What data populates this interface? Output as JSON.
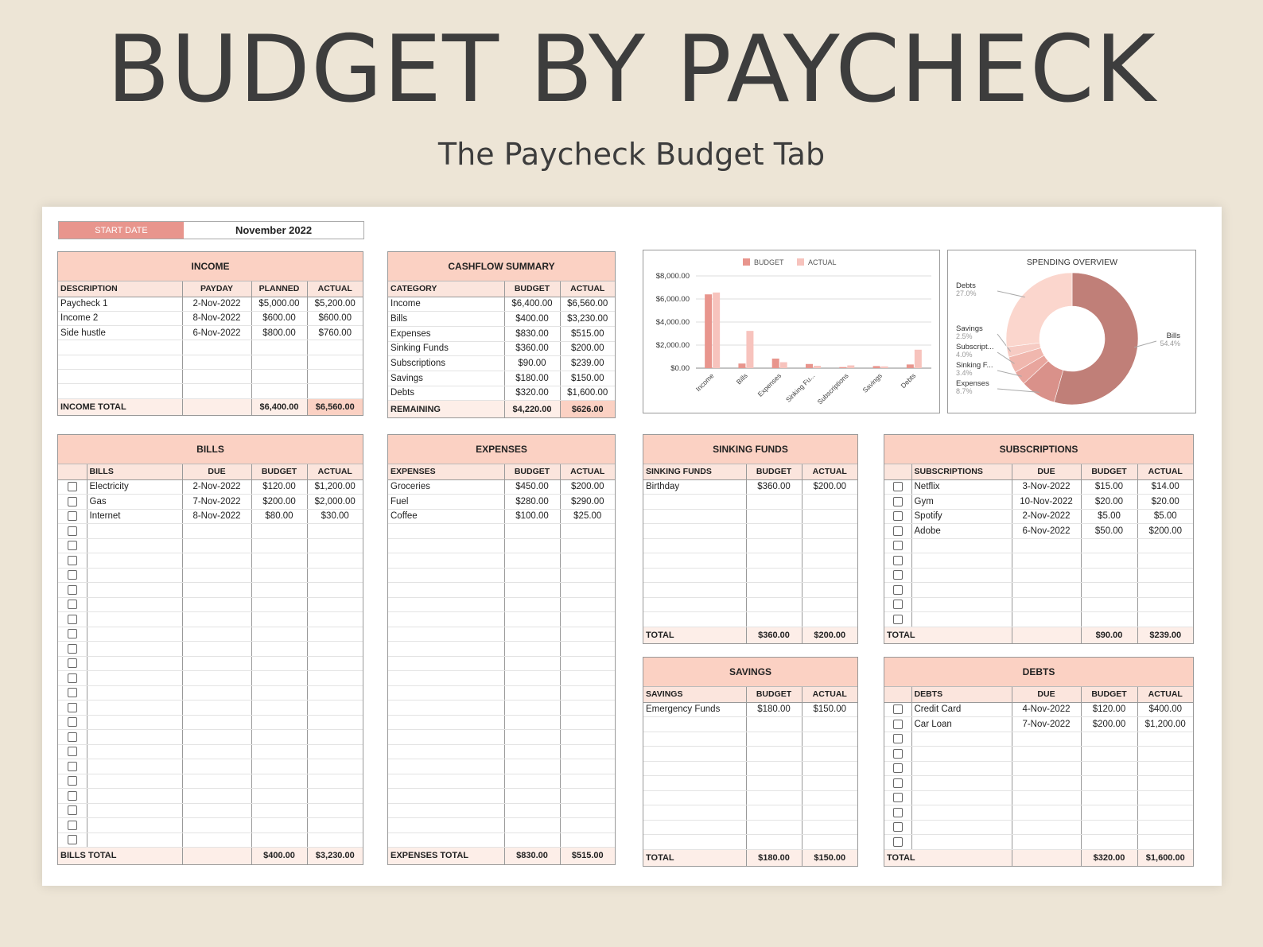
{
  "title": "BUDGET BY PAYCHECK",
  "subtitle": "The Paycheck Budget Tab",
  "start": {
    "label": "START DATE",
    "value": "November 2022"
  },
  "income": {
    "title": "INCOME",
    "headers": [
      "DESCRIPTION",
      "PAYDAY",
      "PLANNED",
      "ACTUAL"
    ],
    "rows": [
      [
        "Paycheck 1",
        "2-Nov-2022",
        "$5,000.00",
        "$5,200.00"
      ],
      [
        "Income 2",
        "8-Nov-2022",
        "$600.00",
        "$600.00"
      ],
      [
        "Side hustle",
        "6-Nov-2022",
        "$800.00",
        "$760.00"
      ]
    ],
    "blank_rows": 4,
    "total": [
      "INCOME TOTAL",
      "",
      "$6,400.00",
      "$6,560.00"
    ]
  },
  "cashflow": {
    "title": "CASHFLOW SUMMARY",
    "headers": [
      "CATEGORY",
      "BUDGET",
      "ACTUAL"
    ],
    "rows": [
      [
        "Income",
        "$6,400.00",
        "$6,560.00"
      ],
      [
        "Bills",
        "$400.00",
        "$3,230.00"
      ],
      [
        "Expenses",
        "$830.00",
        "$515.00"
      ],
      [
        "Sinking Funds",
        "$360.00",
        "$200.00"
      ],
      [
        "Subscriptions",
        "$90.00",
        "$239.00"
      ],
      [
        "Savings",
        "$180.00",
        "$150.00"
      ],
      [
        "Debts",
        "$320.00",
        "$1,600.00"
      ]
    ],
    "total": [
      "REMAINING",
      "$4,220.00",
      "$626.00"
    ]
  },
  "bills": {
    "title": "BILLS",
    "headers": [
      "",
      "BILLS",
      "DUE",
      "BUDGET",
      "ACTUAL"
    ],
    "rows": [
      [
        "Electricity",
        "2-Nov-2022",
        "$120.00",
        "$1,200.00"
      ],
      [
        "Gas",
        "7-Nov-2022",
        "$200.00",
        "$2,000.00"
      ],
      [
        "Internet",
        "8-Nov-2022",
        "$80.00",
        "$30.00"
      ]
    ],
    "blank_rows": 22,
    "total": [
      "BILLS TOTAL",
      "",
      "$400.00",
      "$3,230.00"
    ]
  },
  "expenses": {
    "title": "EXPENSES",
    "headers": [
      "EXPENSES",
      "BUDGET",
      "ACTUAL"
    ],
    "rows": [
      [
        "Groceries",
        "$450.00",
        "$200.00"
      ],
      [
        "Fuel",
        "$280.00",
        "$290.00"
      ],
      [
        "Coffee",
        "$100.00",
        "$25.00"
      ]
    ],
    "blank_rows": 22,
    "total": [
      "EXPENSES TOTAL",
      "$830.00",
      "$515.00"
    ]
  },
  "sinking": {
    "title": "SINKING FUNDS",
    "headers": [
      "SINKING FUNDS",
      "BUDGET",
      "ACTUAL"
    ],
    "rows": [
      [
        "Birthday",
        "$360.00",
        "$200.00"
      ]
    ],
    "blank_rows": 9,
    "total": [
      "TOTAL",
      "$360.00",
      "$200.00"
    ]
  },
  "subscriptions": {
    "title": "SUBSCRIPTIONS",
    "headers": [
      "",
      "SUBSCRIPTIONS",
      "DUE",
      "BUDGET",
      "ACTUAL"
    ],
    "rows": [
      [
        "Netflix",
        "3-Nov-2022",
        "$15.00",
        "$14.00"
      ],
      [
        "Gym",
        "10-Nov-2022",
        "$20.00",
        "$20.00"
      ],
      [
        "Spotify",
        "2-Nov-2022",
        "$5.00",
        "$5.00"
      ],
      [
        "Adobe",
        "6-Nov-2022",
        "$50.00",
        "$200.00"
      ]
    ],
    "blank_rows": 6,
    "total": [
      "TOTAL",
      "",
      "$90.00",
      "$239.00"
    ]
  },
  "savings": {
    "title": "SAVINGS",
    "headers": [
      "SAVINGS",
      "BUDGET",
      "ACTUAL"
    ],
    "rows": [
      [
        "Emergency Funds",
        "$180.00",
        "$150.00"
      ]
    ],
    "blank_rows": 9,
    "total": [
      "TOTAL",
      "$180.00",
      "$150.00"
    ]
  },
  "debts": {
    "title": "DEBTS",
    "headers": [
      "",
      "DEBTS",
      "DUE",
      "BUDGET",
      "ACTUAL"
    ],
    "rows": [
      [
        "Credit Card",
        "4-Nov-2022",
        "$120.00",
        "$400.00"
      ],
      [
        "Car Loan",
        "7-Nov-2022",
        "$200.00",
        "$1,200.00"
      ]
    ],
    "blank_rows": 8,
    "total": [
      "TOTAL",
      "",
      "$320.00",
      "$1,600.00"
    ]
  },
  "chart_data": [
    {
      "type": "bar",
      "title": "",
      "categories": [
        "Income",
        "Bills",
        "Expenses",
        "Sinking Fu...",
        "Subscriptions",
        "Savings",
        "Debts"
      ],
      "series": [
        {
          "name": "BUDGET",
          "color": "#e8958d",
          "values": [
            6400,
            400,
            830,
            360,
            90,
            180,
            320
          ]
        },
        {
          "name": "ACTUAL",
          "color": "#f7c3bd",
          "values": [
            6560,
            3230,
            515,
            200,
            239,
            150,
            1600
          ]
        }
      ],
      "yticks": [
        "$8,000.00",
        "$6,000.00",
        "$4,000.00",
        "$2,000.00",
        "$0.00"
      ],
      "ylim": [
        0,
        8000
      ],
      "legend": "top"
    },
    {
      "type": "pie",
      "title": "SPENDING OVERVIEW",
      "slices": [
        {
          "label": "Bills",
          "pct": "54.4%",
          "value": 54.4,
          "color": "#c07f78"
        },
        {
          "label": "Expenses",
          "pct": "8.7%",
          "value": 8.7,
          "color": "#d9918a"
        },
        {
          "label": "Sinking F...",
          "pct": "3.4%",
          "value": 3.4,
          "color": "#e8a59d"
        },
        {
          "label": "Subscript...",
          "pct": "4.0%",
          "value": 4.0,
          "color": "#f0b7ae"
        },
        {
          "label": "Savings",
          "pct": "2.5%",
          "value": 2.5,
          "color": "#f6cbc3"
        },
        {
          "label": "Debts",
          "pct": "27.0%",
          "value": 27.0,
          "color": "#fbd6cd"
        }
      ]
    }
  ]
}
